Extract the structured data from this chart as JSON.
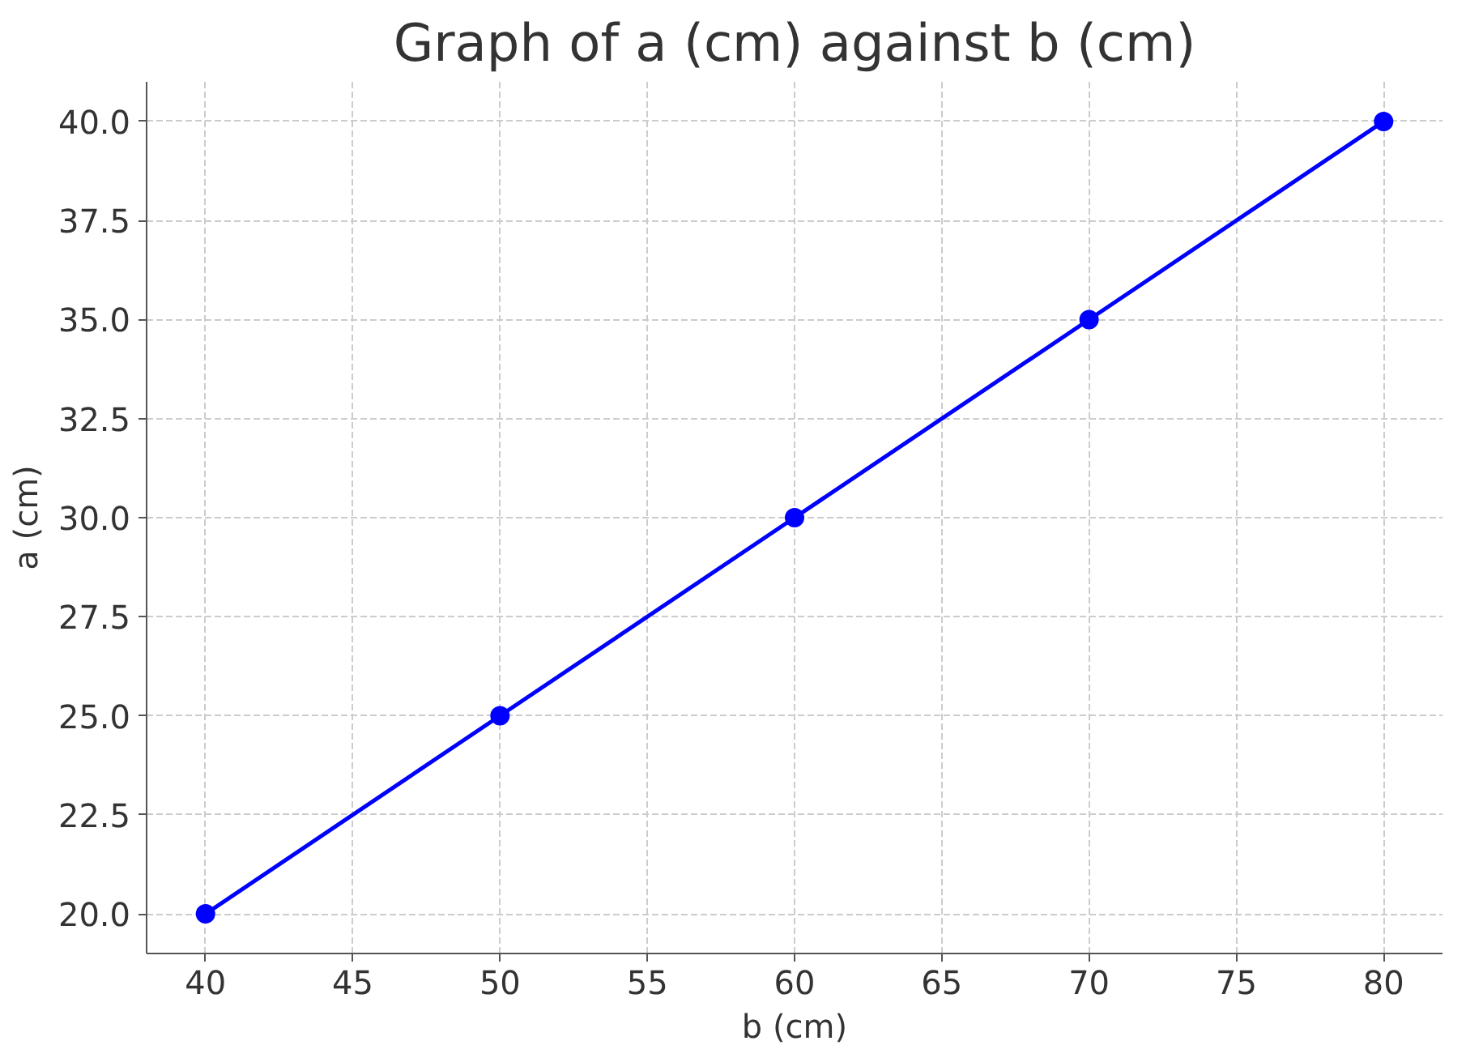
{
  "chart_data": {
    "type": "line",
    "title": "Graph of a (cm) against b (cm)",
    "xlabel": "b (cm)",
    "ylabel": "a (cm)",
    "x": [
      40,
      50,
      60,
      70,
      80
    ],
    "series": [
      {
        "color": "#0000ff",
        "values": [
          20,
          25,
          30,
          35,
          40
        ]
      }
    ],
    "xlim": [
      38,
      82
    ],
    "ylim": [
      19,
      41
    ],
    "xticks": [
      40,
      45,
      50,
      55,
      60,
      65,
      70,
      75,
      80
    ],
    "yticks": [
      {
        "value": 20,
        "label": "20.0"
      },
      {
        "value": 22.5,
        "label": "22.5"
      },
      {
        "value": 25,
        "label": "25.0"
      },
      {
        "value": 27.5,
        "label": "27.5"
      },
      {
        "value": 30,
        "label": "30.0"
      },
      {
        "value": 32.5,
        "label": "32.5"
      },
      {
        "value": 35,
        "label": "35.0"
      },
      {
        "value": 37.5,
        "label": "37.5"
      },
      {
        "value": 40,
        "label": "40.0"
      }
    ],
    "grid": true,
    "marker": "circle",
    "line_style": "solid"
  }
}
